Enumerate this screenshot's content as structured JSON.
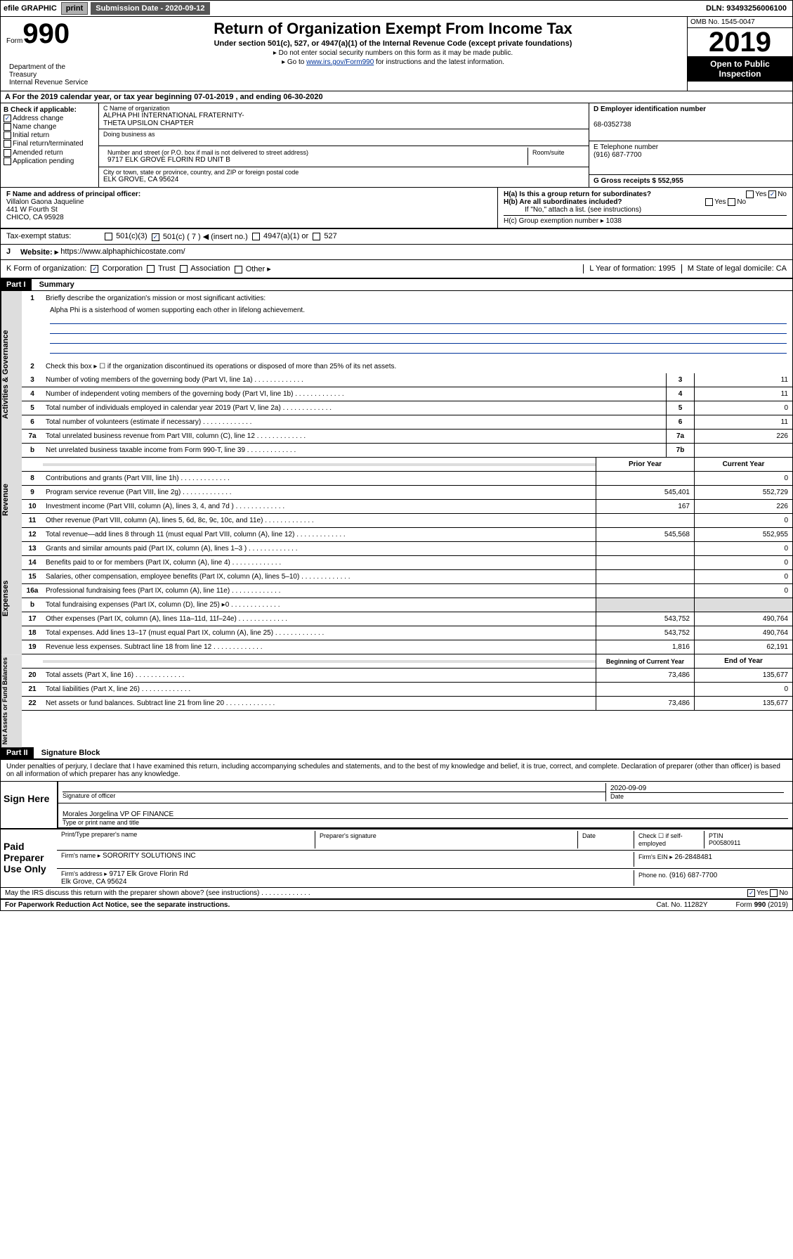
{
  "topbar": {
    "efile": "efile GRAPHIC",
    "print": "print",
    "sub_label": "Submission Date - 2020-09-12",
    "dln": "DLN: 93493256006100"
  },
  "header": {
    "form_label": "Form",
    "form_num": "990",
    "title": "Return of Organization Exempt From Income Tax",
    "subtitle": "Under section 501(c), 527, or 4947(a)(1) of the Internal Revenue Code (except private foundations)",
    "note1": "▸ Do not enter social security numbers on this form as it may be made public.",
    "note2_pre": "▸ Go to ",
    "note2_link": "www.irs.gov/Form990",
    "note2_post": " for instructions and the latest information.",
    "omb": "OMB No. 1545-0047",
    "year": "2019",
    "open": "Open to Public Inspection",
    "dept": "Department of the Treasury\nInternal Revenue Service"
  },
  "row_a": "A For the 2019 calendar year, or tax year beginning 07-01-2019   , and ending 06-30-2020",
  "section_b": {
    "label": "B Check if applicable:",
    "items": [
      "Address change",
      "Name change",
      "Initial return",
      "Final return/terminated",
      "Amended return",
      "Application pending"
    ],
    "checked": [
      true,
      false,
      false,
      false,
      false,
      false
    ]
  },
  "section_c": {
    "name_label": "C Name of organization",
    "name_value": "ALPHA PHI INTERNATIONAL FRATERNITY-\nTHETA UPSILON CHAPTER",
    "dba_label": "Doing business as",
    "addr_label": "Number and street (or P.O. box if mail is not delivered to street address)",
    "room_label": "Room/suite",
    "addr_value": "9717 ELK GROVE FLORIN RD UNIT B",
    "city_label": "City or town, state or province, country, and ZIP or foreign postal code",
    "city_value": "ELK GROVE, CA  95624"
  },
  "section_d": {
    "ein_label": "D Employer identification number",
    "ein_value": "68-0352738",
    "phone_label": "E Telephone number",
    "phone_value": "(916) 687-7700",
    "gross_label": "G Gross receipts $ 552,955"
  },
  "section_f": {
    "label": "F  Name and address of principal officer:",
    "name": "Villalon Gaona Jaqueline",
    "addr1": "441 W Fourth St",
    "addr2": "CHICO, CA  95928"
  },
  "section_h": {
    "ha": "H(a)  Is this a group return for subordinates?",
    "hb": "H(b)  Are all subordinates included?",
    "hb_note": "If \"No,\" attach a list. (see instructions)",
    "hc": "H(c)  Group exemption number ▸  1038"
  },
  "row_i": {
    "label": "Tax-exempt status:",
    "opts": [
      "501(c)(3)",
      "501(c) ( 7 ) ◀ (insert no.)",
      "4947(a)(1) or",
      "527"
    ]
  },
  "row_j": {
    "label": "J",
    "website_label": "Website: ▸",
    "website_value": "https://www.alphaphichicostate.com/"
  },
  "row_k": {
    "label": "K Form of organization:",
    "opts": [
      "Corporation",
      "Trust",
      "Association",
      "Other ▸"
    ],
    "l_label": "L Year of formation: 1995",
    "m_label": "M State of legal domicile: CA"
  },
  "part1": {
    "header": "Part I",
    "title": "Summary",
    "q1": "Briefly describe the organization's mission or most significant activities:",
    "mission": "Alpha Phi is a sisterhood of women supporting each other in lifelong achievement.",
    "q2": "Check this box ▸ ☐  if the organization discontinued its operations or disposed of more than 25% of its net assets."
  },
  "vlabels": {
    "act": "Activities & Governance",
    "rev": "Revenue",
    "exp": "Expenses",
    "net": "Net Assets or Fund Balances"
  },
  "lines": {
    "3": {
      "text": "Number of voting members of the governing body (Part VI, line 1a)",
      "val": "11"
    },
    "4": {
      "text": "Number of independent voting members of the governing body (Part VI, line 1b)",
      "val": "11"
    },
    "5": {
      "text": "Total number of individuals employed in calendar year 2019 (Part V, line 2a)",
      "val": "0"
    },
    "6": {
      "text": "Total number of volunteers (estimate if necessary)",
      "val": "11"
    },
    "7a": {
      "text": "Total unrelated business revenue from Part VIII, column (C), line 12",
      "val": "226"
    },
    "7b": {
      "text": "Net unrelated business taxable income from Form 990-T, line 39",
      "val": ""
    }
  },
  "col_headers": {
    "prior": "Prior Year",
    "current": "Current Year",
    "begin": "Beginning of Current Year",
    "end": "End of Year"
  },
  "rev_lines": [
    {
      "n": "8",
      "text": "Contributions and grants (Part VIII, line 1h)",
      "prior": "",
      "cur": "0"
    },
    {
      "n": "9",
      "text": "Program service revenue (Part VIII, line 2g)",
      "prior": "545,401",
      "cur": "552,729"
    },
    {
      "n": "10",
      "text": "Investment income (Part VIII, column (A), lines 3, 4, and 7d )",
      "prior": "167",
      "cur": "226"
    },
    {
      "n": "11",
      "text": "Other revenue (Part VIII, column (A), lines 5, 6d, 8c, 9c, 10c, and 11e)",
      "prior": "",
      "cur": "0"
    },
    {
      "n": "12",
      "text": "Total revenue—add lines 8 through 11 (must equal Part VIII, column (A), line 12)",
      "prior": "545,568",
      "cur": "552,955"
    }
  ],
  "exp_lines": [
    {
      "n": "13",
      "text": "Grants and similar amounts paid (Part IX, column (A), lines 1–3 )",
      "prior": "",
      "cur": "0"
    },
    {
      "n": "14",
      "text": "Benefits paid to or for members (Part IX, column (A), line 4)",
      "prior": "",
      "cur": "0"
    },
    {
      "n": "15",
      "text": "Salaries, other compensation, employee benefits (Part IX, column (A), lines 5–10)",
      "prior": "",
      "cur": "0"
    },
    {
      "n": "16a",
      "text": "Professional fundraising fees (Part IX, column (A), line 11e)",
      "prior": "",
      "cur": "0"
    },
    {
      "n": "b",
      "text": "Total fundraising expenses (Part IX, column (D), line 25) ▸0",
      "prior": "",
      "cur": "",
      "grey": true
    },
    {
      "n": "17",
      "text": "Other expenses (Part IX, column (A), lines 11a–11d, 11f–24e)",
      "prior": "543,752",
      "cur": "490,764"
    },
    {
      "n": "18",
      "text": "Total expenses. Add lines 13–17 (must equal Part IX, column (A), line 25)",
      "prior": "543,752",
      "cur": "490,764"
    },
    {
      "n": "19",
      "text": "Revenue less expenses. Subtract line 18 from line 12",
      "prior": "1,816",
      "cur": "62,191"
    }
  ],
  "net_lines": [
    {
      "n": "20",
      "text": "Total assets (Part X, line 16)",
      "prior": "73,486",
      "cur": "135,677"
    },
    {
      "n": "21",
      "text": "Total liabilities (Part X, line 26)",
      "prior": "",
      "cur": "0"
    },
    {
      "n": "22",
      "text": "Net assets or fund balances. Subtract line 21 from line 20",
      "prior": "73,486",
      "cur": "135,677"
    }
  ],
  "part2": {
    "header": "Part II",
    "title": "Signature Block",
    "perjury": "Under penalties of perjury, I declare that I have examined this return, including accompanying schedules and statements, and to the best of my knowledge and belief, it is true, correct, and complete. Declaration of preparer (other than officer) is based on all information of which preparer has any knowledge."
  },
  "sign": {
    "left": "Sign Here",
    "sig_label": "Signature of officer",
    "date": "2020-09-09",
    "date_label": "Date",
    "name": "Morales Jorgelina  VP OF FINANCE",
    "name_label": "Type or print name and title"
  },
  "paid": {
    "left": "Paid Preparer Use Only",
    "prep_name_label": "Print/Type preparer's name",
    "prep_sig_label": "Preparer's signature",
    "date_label": "Date",
    "check_label": "Check ☐ if self-employed",
    "ptin_label": "PTIN",
    "ptin": "P00580911",
    "firm_name_label": "Firm's name   ▸",
    "firm_name": "SORORITY SOLUTIONS INC",
    "firm_ein_label": "Firm's EIN ▸",
    "firm_ein": "26-2848481",
    "firm_addr_label": "Firm's address ▸",
    "firm_addr": "9717 Elk Grove Florin Rd\nElk Grove, CA  95624",
    "phone_label": "Phone no.",
    "phone": "(916) 687-7700"
  },
  "footer": {
    "discuss": "May the IRS discuss this return with the preparer shown above? (see instructions)",
    "paperwork": "For Paperwork Reduction Act Notice, see the separate instructions.",
    "cat": "Cat. No. 11282Y",
    "form": "Form 990 (2019)"
  }
}
